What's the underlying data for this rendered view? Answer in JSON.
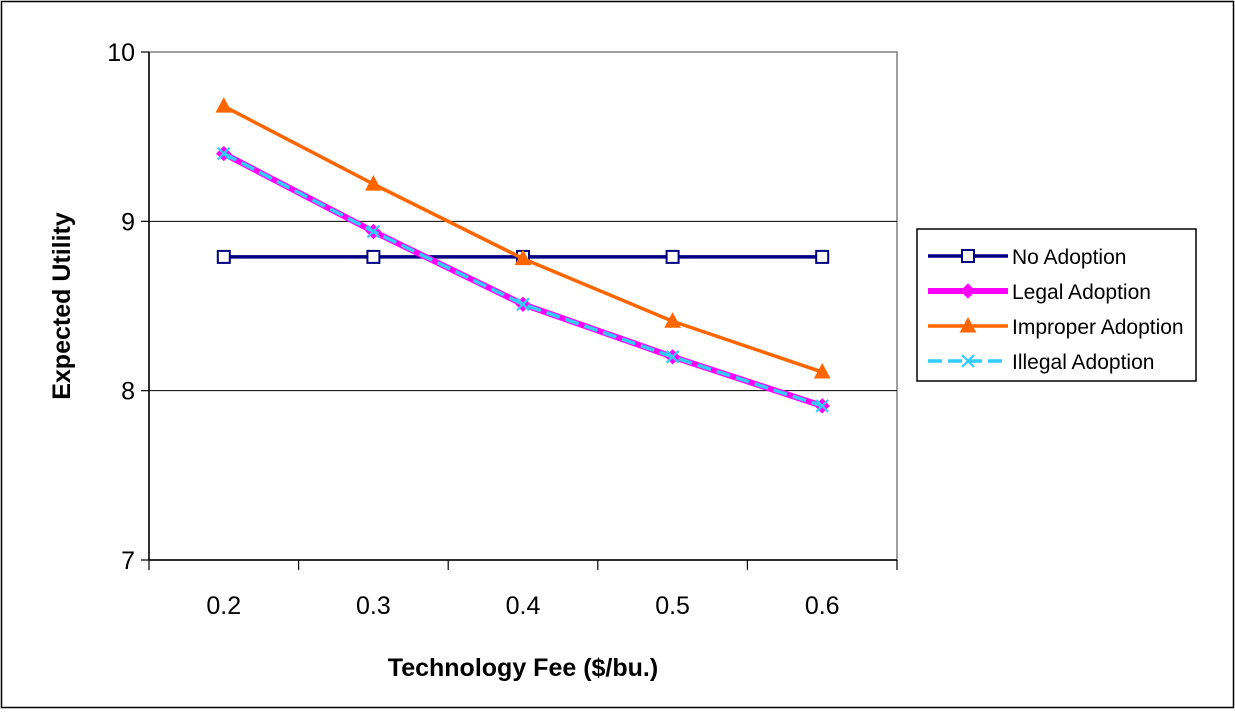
{
  "chart_data": {
    "type": "line",
    "title": "",
    "xlabel": "Technology Fee ($/bu.)",
    "ylabel": "Expected Utility",
    "categories": [
      "0.2",
      "0.3",
      "0.4",
      "0.5",
      "0.6"
    ],
    "ylim": [
      7,
      10
    ],
    "yticks": [
      "7",
      "8",
      "9",
      "10"
    ],
    "grid": "horizontal",
    "legend_position": "right",
    "series": [
      {
        "name": "No Adoption",
        "values": [
          8.79,
          8.79,
          8.79,
          8.79,
          8.79
        ],
        "color": "#000080",
        "marker": "square-open",
        "line_style": "solid"
      },
      {
        "name": "Legal Adoption",
        "values": [
          9.4,
          8.94,
          8.51,
          8.2,
          7.91
        ],
        "color": "#ff00ff",
        "marker": "diamond",
        "line_style": "solid"
      },
      {
        "name": "Improper Adoption",
        "values": [
          9.68,
          9.22,
          8.78,
          8.41,
          8.11
        ],
        "color": "#ff6600",
        "marker": "triangle",
        "line_style": "solid"
      },
      {
        "name": "Illegal Adoption",
        "values": [
          9.4,
          8.94,
          8.51,
          8.2,
          7.91
        ],
        "color": "#33ccff",
        "marker": "x",
        "line_style": "dashed"
      }
    ]
  }
}
